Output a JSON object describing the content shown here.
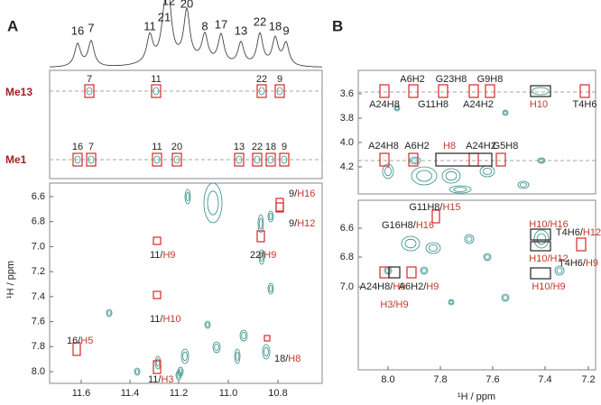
{
  "panels": [
    {
      "label": "A",
      "peaks": [
        "16",
        "7",
        "11",
        "21",
        "12",
        "20",
        "8",
        "17",
        "13",
        "22",
        "18",
        "9"
      ],
      "rows": [
        {
          "label": "Me13",
          "peaks": [
            "7",
            "11",
            "22",
            "9"
          ]
        },
        {
          "label": "Me1",
          "peaks": [
            "16",
            "7",
            "11",
            "20",
            "13",
            "22",
            "18",
            "9"
          ]
        }
      ],
      "yticks": [
        "6.6",
        "6.8",
        "7.0",
        "7.2",
        "7.4",
        "7.6",
        "7.8",
        "8.0"
      ],
      "xticks": [
        "11.6",
        "11.4",
        "11.2",
        "11.0",
        "10.8"
      ],
      "ylabel": "¹H / ppm",
      "annotations": [
        {
          "a": "9/",
          "b": "H16"
        },
        {
          "a": "9/",
          "b": "H12"
        },
        {
          "a": "11/",
          "b": "H9"
        },
        {
          "a": "22/",
          "b": "H9"
        },
        {
          "a": "11/",
          "b": "H10"
        },
        {
          "a": "18/",
          "b": "H8"
        },
        {
          "a": "16/",
          "b": "H5"
        },
        {
          "a": "11/",
          "b": "H3"
        }
      ]
    },
    {
      "label": "B",
      "yticks_top": [
        "3.6",
        "3.8",
        "4.0",
        "4.2"
      ],
      "yticks_bottom": [
        "6.6",
        "6.8",
        "7.0"
      ],
      "xticks": [
        "8.0",
        "7.8",
        "7.6",
        "7.4",
        "7.2"
      ],
      "xlabel": "¹H / ppm",
      "annotations": [
        {
          "a": "A6H2"
        },
        {
          "a": "G23H8"
        },
        {
          "a": "G9H8"
        },
        {
          "a": "A24H8"
        },
        {
          "a": "G11H8"
        },
        {
          "a": "A24H2"
        },
        {
          "b": "H10"
        },
        {
          "a": "T4H6"
        },
        {
          "a": "A24H8"
        },
        {
          "a": "A6H2"
        },
        {
          "b": "H8"
        },
        {
          "a": "A24H2"
        },
        {
          "a": "G5H8"
        },
        {
          "a": "G11H8/",
          "b": "H15"
        },
        {
          "a": "G16H8/",
          "b": "H16"
        },
        {
          "b": "H10/H16"
        },
        {
          "a": "T4H6/",
          "b": "H12"
        },
        {
          "b": "H10/H12"
        },
        {
          "a": "A24H8/",
          "b": "H9"
        },
        {
          "a": "A6H2/",
          "b": "H9"
        },
        {
          "a": "T4H6/",
          "b": "H9"
        },
        {
          "b": "H3/H9"
        },
        {
          "b": "H10/H9"
        }
      ]
    }
  ]
}
